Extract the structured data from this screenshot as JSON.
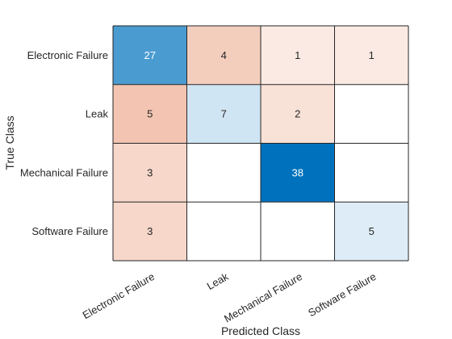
{
  "chart_data": {
    "type": "heatmap",
    "title": "",
    "xlabel": "Predicted Class",
    "ylabel": "True Class",
    "x_categories": [
      "Electronic Failure",
      "Leak",
      "Mechanical Failure",
      "Software Failure"
    ],
    "y_categories": [
      "Electronic Failure",
      "Leak",
      "Mechanical Failure",
      "Software Failure"
    ],
    "values": [
      [
        27,
        4,
        1,
        1
      ],
      [
        5,
        7,
        2,
        null
      ],
      [
        3,
        null,
        38,
        null
      ],
      [
        3,
        null,
        null,
        5
      ]
    ],
    "colors": {
      "diagonal_max": "#0072bd",
      "off_diagonal_max": "#d95319",
      "empty": "#ffffff",
      "grid": "#262626",
      "text_dark": "#262626",
      "text_light": "#ffffff"
    }
  }
}
